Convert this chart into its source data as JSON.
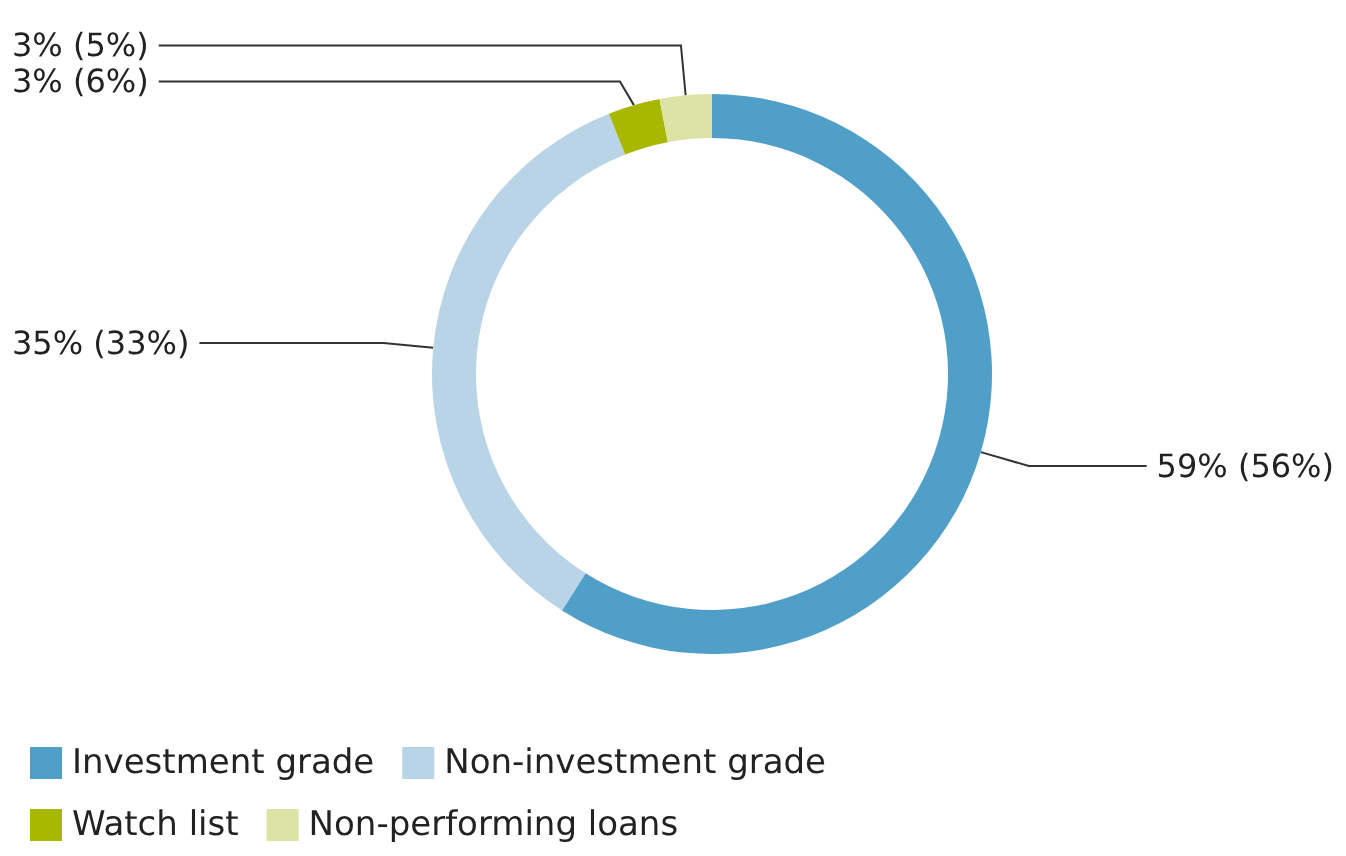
{
  "chart_data": {
    "type": "donut",
    "categories": [
      "Investment grade",
      "Non-investment grade",
      "Watch list",
      "Non-performing loans"
    ],
    "values": [
      59,
      35,
      3,
      3
    ],
    "colors": [
      "#509fc8",
      "#b8d4e6",
      "#a8b800",
      "#dde3a4"
    ],
    "value_labels": [
      "59% (56%)",
      "35% (33%)",
      "3% (6%)",
      "3% (5%)"
    ],
    "legend": "bottom"
  }
}
